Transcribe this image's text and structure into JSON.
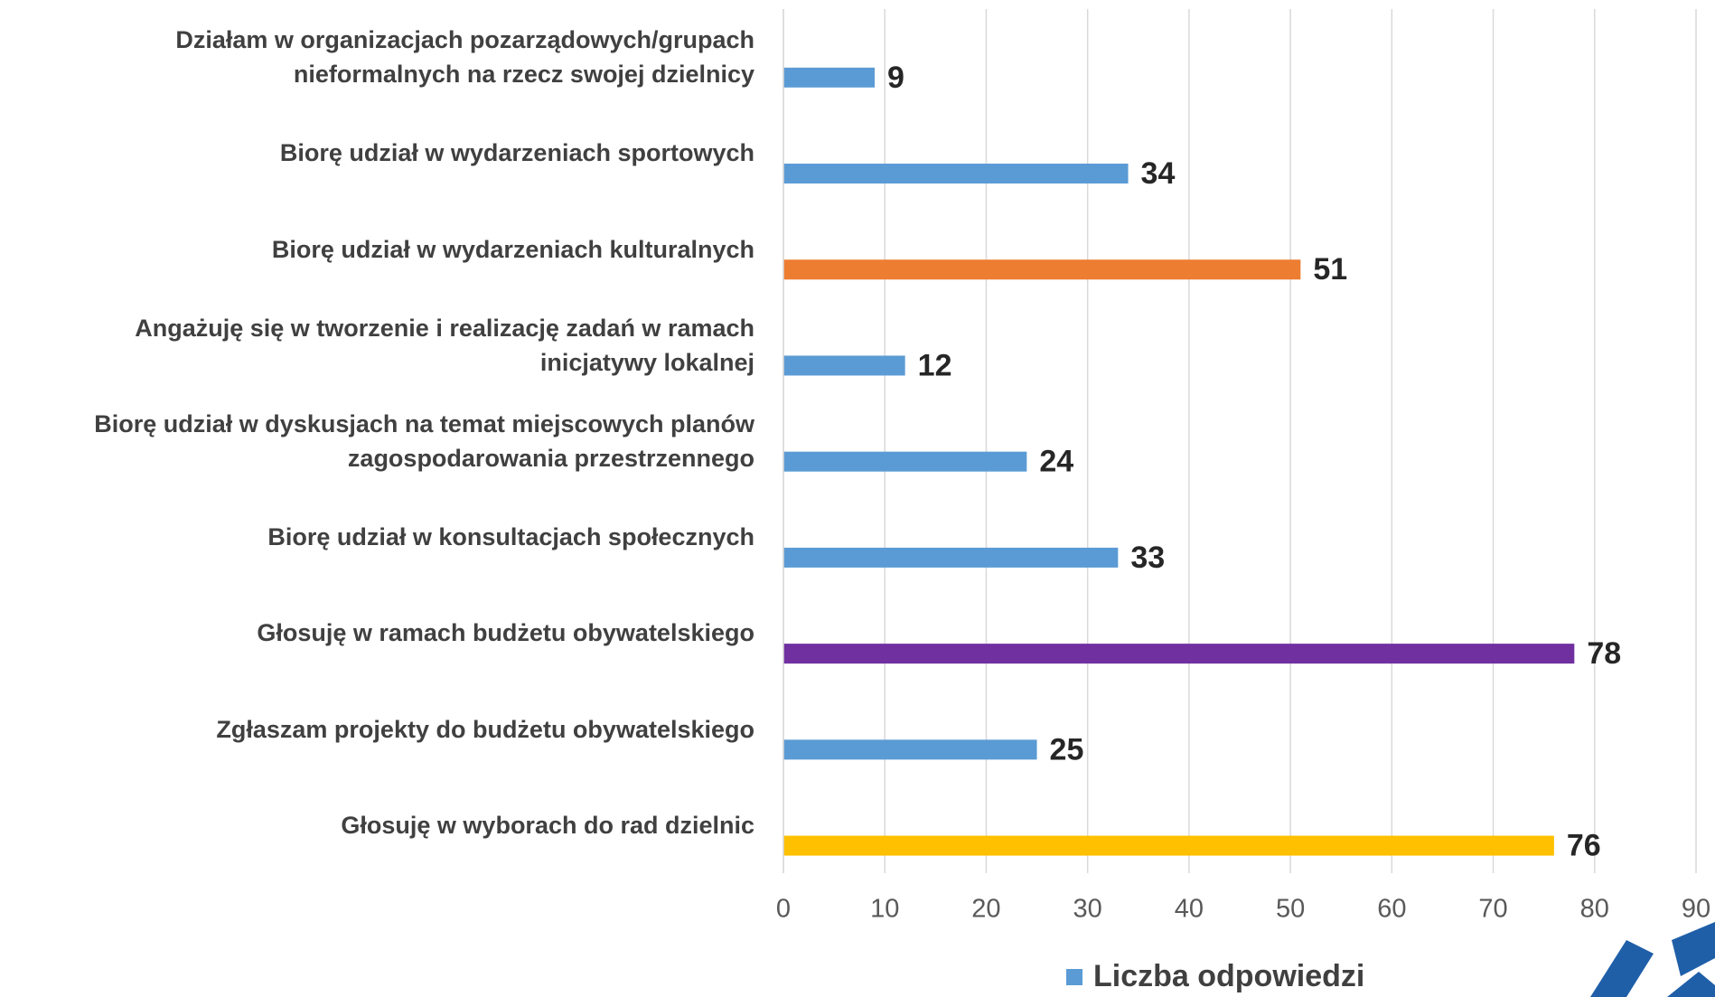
{
  "chart_data": {
    "type": "barh",
    "categories": [
      "Działam w organizacjach pozarządowych/grupach\nnieformalnych na rzecz swojej dzielnicy",
      "Biorę udział w wydarzeniach sportowych",
      "Biorę udział w wydarzeniach kulturalnych",
      "Angażuję się w tworzenie i realizację zadań w ramach\ninicjatywy lokalnej",
      "Biorę udział w dyskusjach na temat miejscowych planów\nzagospodarowania przestrzennego",
      "Biorę udział w konsultacjach społecznych",
      "Głosuję w ramach budżetu obywatelskiego",
      "Zgłaszam projekty do budżetu obywatelskiego",
      "Głosuję w wyborach do rad dzielnic"
    ],
    "series": [
      {
        "name": "Liczba odpowiedzi",
        "color": "#5b9bd5",
        "values": [
          9,
          34,
          51,
          12,
          24,
          33,
          78,
          25,
          76
        ],
        "colors": [
          "#5b9bd5",
          "#5b9bd5",
          "#ed7d31",
          "#5b9bd5",
          "#5b9bd5",
          "#5b9bd5",
          "#7030a0",
          "#5b9bd5",
          "#ffc000"
        ]
      }
    ],
    "xlim": [
      0,
      90
    ],
    "xticks": [
      0,
      10,
      20,
      30,
      40,
      50,
      60,
      70,
      80,
      90
    ],
    "grid": true,
    "legend": "bottom"
  }
}
